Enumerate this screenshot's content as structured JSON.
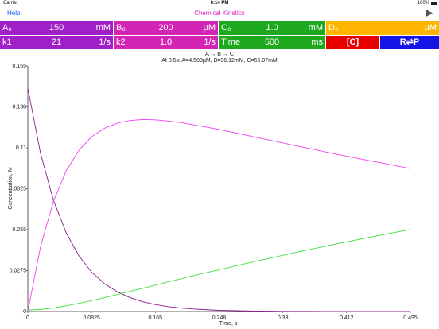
{
  "status_bar": {
    "carrier": "Carrier",
    "time": "6:14 PM",
    "battery": "100%"
  },
  "nav": {
    "left": "Help",
    "title": "Chemical Kinetics"
  },
  "parameters": {
    "row1": [
      {
        "label": "A₀",
        "value": "150",
        "unit": "mM"
      },
      {
        "label": "B₀",
        "value": "200",
        "unit": "µM"
      },
      {
        "label": "C₀",
        "value": "1.0",
        "unit": "mM"
      },
      {
        "label": "D₀",
        "unit": "µM"
      }
    ],
    "row2": [
      {
        "label": "k1",
        "value": "21",
        "unit": "1/s"
      },
      {
        "label": "k2",
        "value": "1.0",
        "unit": "1/s"
      },
      {
        "label": "Time",
        "value": "500",
        "unit": "ms"
      }
    ],
    "buttons": [
      "[C]",
      "R⇌P"
    ]
  },
  "chart_data": {
    "type": "line",
    "title": "A → B → C",
    "subtitle": "At 0.5s: A=4.588µM, B=96.12mM, C=55.07mM",
    "x_label": "Time, s",
    "y_label": "Concentration, M",
    "x": [
      0,
      0.0165,
      0.033,
      0.0495,
      0.066,
      0.0825,
      0.099,
      0.1155,
      0.132,
      0.1485,
      0.165,
      0.1815,
      0.198,
      0.2145,
      0.231,
      0.2475,
      0.264,
      0.2805,
      0.297,
      0.3135,
      0.33,
      0.3465,
      0.363,
      0.3795,
      0.396,
      0.4125,
      0.429,
      0.4455,
      0.462,
      0.4785,
      0.495
    ],
    "series": [
      {
        "color": "#8a1a8a",
        "values": [
          0.15,
          0.1061,
          0.075,
          0.053,
          0.0375,
          0.0265,
          0.0188,
          0.0133,
          0.0094,
          0.0066,
          0.0047,
          0.0033,
          0.0024,
          0.0017,
          0.0012,
          0.0008,
          0.0006,
          0.0004,
          0.0003,
          0.0002,
          0.0001,
          0.0001,
          0.0001,
          0,
          0,
          0,
          0,
          0,
          0,
          0,
          0
        ]
      },
      {
        "color": "#f040f0",
        "values": [
          0.0002,
          0.0437,
          0.0738,
          0.0944,
          0.1082,
          0.1174,
          0.1231,
          0.1265,
          0.1283,
          0.129,
          0.1288,
          0.128,
          0.1269,
          0.1254,
          0.1239,
          0.1223,
          0.1205,
          0.1187,
          0.1169,
          0.1151,
          0.1133,
          0.1114,
          0.1097,
          0.1079,
          0.1061,
          0.1044,
          0.1027,
          0.101,
          0.0994,
          0.0977,
          0.0961
        ]
      },
      {
        "color": "#40e040",
        "values": [
          0.001,
          0.0014,
          0.0024,
          0.0038,
          0.0055,
          0.0073,
          0.0093,
          0.0114,
          0.0135,
          0.0156,
          0.0177,
          0.0199,
          0.0219,
          0.0241,
          0.0261,
          0.0281,
          0.0301,
          0.0321,
          0.034,
          0.0359,
          0.0378,
          0.0397,
          0.0415,
          0.0433,
          0.0451,
          0.0468,
          0.0485,
          0.0502,
          0.0518,
          0.0535,
          0.0551
        ]
      }
    ],
    "xlim": [
      0,
      0.495
    ],
    "ylim": [
      0,
      0.165
    ],
    "xticks": [
      0,
      0.0825,
      0.165,
      {
        "value": 0.2475,
        "label": "0.248"
      },
      0.33,
      {
        "value": 0.4125,
        "label": "0.412"
      },
      0.495
    ],
    "yticks": [
      0,
      0.0275,
      0.055,
      0.0825,
      0.11,
      {
        "value": 0.1375,
        "label": "0.138"
      },
      0.165
    ],
    "grid": false
  }
}
